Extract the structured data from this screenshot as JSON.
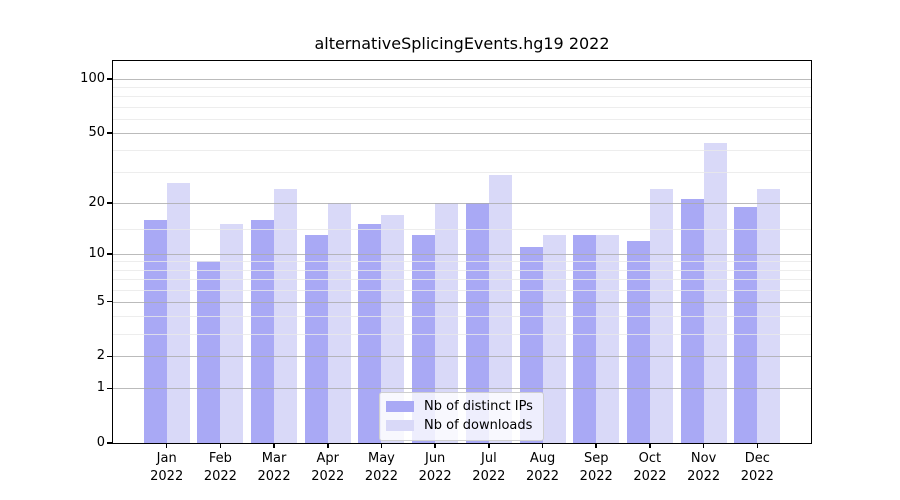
{
  "figure": {
    "title": "alternativeSplicingEvents.hg19 2022"
  },
  "legend": {
    "items": [
      {
        "label": "Nb of distinct IPs",
        "color": "#a9a9f5"
      },
      {
        "label": "Nb of downloads",
        "color": "#d9d9f8"
      }
    ]
  },
  "chart_data": {
    "type": "bar",
    "title": "alternativeSplicingEvents.hg19 2022",
    "categories": [
      "Jan",
      "Feb",
      "Mar",
      "Apr",
      "May",
      "Jun",
      "Jul",
      "Aug",
      "Sep",
      "Oct",
      "Nov",
      "Dec"
    ],
    "x_ticklabels": [
      [
        "Jan",
        "2022"
      ],
      [
        "Feb",
        "2022"
      ],
      [
        "Mar",
        "2022"
      ],
      [
        "Apr",
        "2022"
      ],
      [
        "May",
        "2022"
      ],
      [
        "Jun",
        "2022"
      ],
      [
        "Jul",
        "2022"
      ],
      [
        "Aug",
        "2022"
      ],
      [
        "Sep",
        "2022"
      ],
      [
        "Oct",
        "2022"
      ],
      [
        "Nov",
        "2022"
      ],
      [
        "Dec",
        "2022"
      ]
    ],
    "series": [
      {
        "name": "Nb of distinct IPs",
        "color": "#a9a9f5",
        "values": [
          16,
          9,
          16,
          13,
          15,
          13,
          20,
          11,
          13,
          12,
          21,
          19
        ]
      },
      {
        "name": "Nb of downloads",
        "color": "#d9d9f8",
        "values": [
          26,
          15,
          24,
          20,
          17,
          20,
          29,
          13,
          13,
          24,
          44,
          24
        ]
      }
    ],
    "yscale": "log1p",
    "ylim": [
      0,
      126
    ],
    "yticks": [
      0,
      1,
      2,
      5,
      10,
      20,
      50,
      100
    ],
    "yticklabels": [
      "0",
      "1",
      "2",
      "5",
      "10",
      "20",
      "50",
      "100"
    ],
    "yticks_minor": [
      3,
      4,
      6,
      7,
      8,
      9,
      14,
      30,
      40,
      60,
      70,
      80,
      90
    ],
    "grid": true,
    "grid_major_color": "#aaaaaa",
    "grid_minor_color": "#e8e8e8",
    "legend_position": "lower center"
  }
}
